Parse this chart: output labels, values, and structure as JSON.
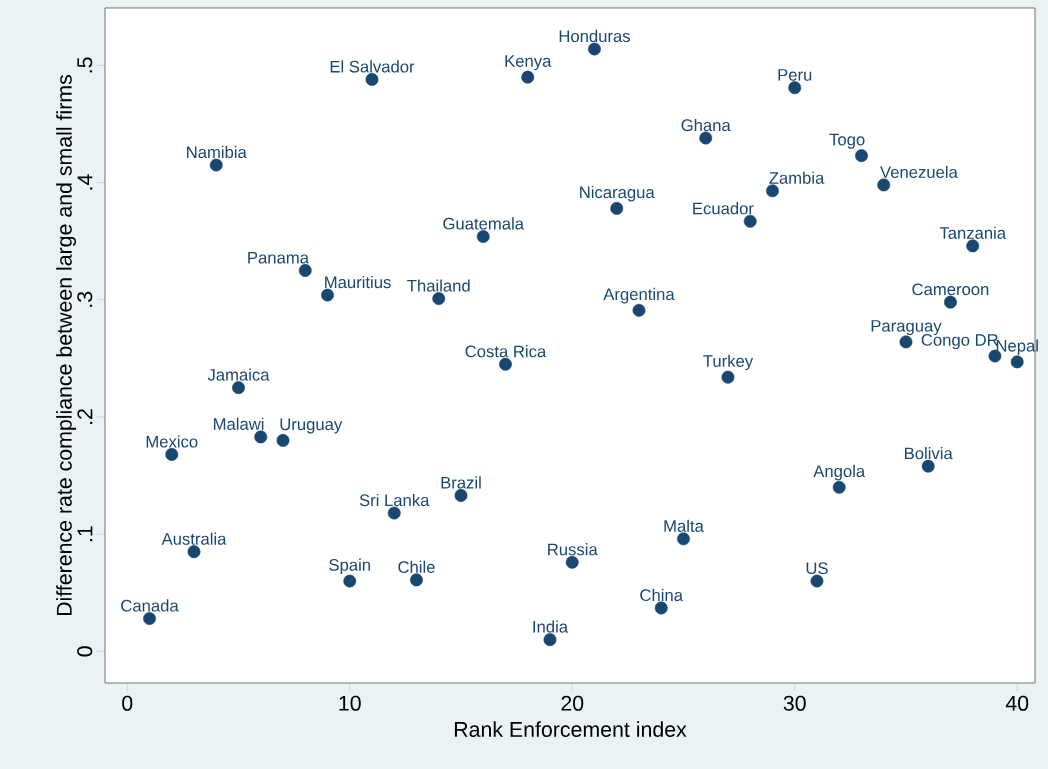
{
  "chart_data": {
    "type": "scatter",
    "xlabel": "Rank Enforcement index",
    "ylabel": "Difference rate compliance between large and small firms",
    "x": [
      1,
      2,
      3,
      4,
      5,
      6,
      7,
      8,
      9,
      10,
      11,
      12,
      13,
      14,
      15,
      16,
      17,
      18,
      19,
      20,
      21,
      22,
      23,
      24,
      25,
      26,
      27,
      28,
      29,
      30,
      31,
      32,
      33,
      34,
      35,
      36,
      37,
      38,
      39,
      40
    ],
    "series": [
      {
        "color": "#1a476f",
        "values": [
          0.028,
          0.168,
          0.085,
          0.415,
          0.225,
          0.183,
          0.18,
          0.325,
          0.304,
          0.06,
          0.488,
          0.118,
          0.061,
          0.301,
          0.133,
          0.354,
          0.245,
          0.49,
          0.01,
          0.076,
          0.514,
          0.378,
          0.291,
          0.037,
          0.096,
          0.438,
          0.234,
          0.367,
          0.393,
          0.481,
          0.06,
          0.14,
          0.423,
          0.398,
          0.264,
          0.158,
          0.298,
          0.346,
          0.252,
          0.247
        ]
      }
    ],
    "marker": "circle",
    "grid": false,
    "legend": false,
    "xlim": [
      -1,
      40.8
    ],
    "ylim": [
      -0.027,
      0.549
    ],
    "xticks": [
      0,
      10,
      20,
      30,
      40
    ],
    "yticks": [
      0,
      {
        "value": 0.1,
        "label": ".1"
      },
      {
        "value": 0.2,
        "label": ".2"
      },
      {
        "value": 0.3,
        "label": ".3"
      },
      {
        "value": 0.4,
        "label": ".4"
      },
      {
        "value": 0.5,
        "label": ".5"
      }
    ],
    "annotations": [
      {
        "text": "Canada",
        "x": 1,
        "y": 0.028
      },
      {
        "text": "Mexico",
        "x": 2,
        "y": 0.168
      },
      {
        "text": "Australia",
        "x": 3,
        "y": 0.085
      },
      {
        "text": "Namibia",
        "x": 4,
        "y": 0.415
      },
      {
        "text": "Jamaica",
        "x": 5,
        "y": 0.225
      },
      {
        "text": "Malawi",
        "x": 6,
        "y": 0.183
      },
      {
        "text": "Uruguay",
        "x": 7,
        "y": 0.18
      },
      {
        "text": "Panama",
        "x": 8,
        "y": 0.325
      },
      {
        "text": "Mauritius",
        "x": 9,
        "y": 0.304
      },
      {
        "text": "Spain",
        "x": 10,
        "y": 0.06
      },
      {
        "text": "El Salvador",
        "x": 11,
        "y": 0.488
      },
      {
        "text": "Sri Lanka",
        "x": 12,
        "y": 0.118
      },
      {
        "text": "Chile",
        "x": 13,
        "y": 0.061
      },
      {
        "text": "Thailand",
        "x": 14,
        "y": 0.301
      },
      {
        "text": "Brazil",
        "x": 15,
        "y": 0.133
      },
      {
        "text": "Guatemala",
        "x": 16,
        "y": 0.354
      },
      {
        "text": "Costa Rica",
        "x": 17,
        "y": 0.245
      },
      {
        "text": "Kenya",
        "x": 18,
        "y": 0.49
      },
      {
        "text": "India",
        "x": 19,
        "y": 0.01
      },
      {
        "text": "Russia",
        "x": 20,
        "y": 0.076
      },
      {
        "text": "Honduras",
        "x": 21,
        "y": 0.514
      },
      {
        "text": "Nicaragua",
        "x": 22,
        "y": 0.378
      },
      {
        "text": "Argentina",
        "x": 23,
        "y": 0.291
      },
      {
        "text": "China",
        "x": 24,
        "y": 0.037
      },
      {
        "text": "Malta",
        "x": 25,
        "y": 0.096
      },
      {
        "text": "Ghana",
        "x": 26,
        "y": 0.438
      },
      {
        "text": "Turkey",
        "x": 27,
        "y": 0.234
      },
      {
        "text": "Ecuador",
        "x": 28,
        "y": 0.367
      },
      {
        "text": "Zambia",
        "x": 29,
        "y": 0.393
      },
      {
        "text": "Peru",
        "x": 30,
        "y": 0.481
      },
      {
        "text": "US",
        "x": 31,
        "y": 0.06
      },
      {
        "text": "Angola",
        "x": 32,
        "y": 0.14
      },
      {
        "text": "Togo",
        "x": 33,
        "y": 0.423
      },
      {
        "text": "Venezuela",
        "x": 34,
        "y": 0.398
      },
      {
        "text": "Paraguay",
        "x": 35,
        "y": 0.264
      },
      {
        "text": "Bolivia",
        "x": 36,
        "y": 0.158
      },
      {
        "text": "Cameroon",
        "x": 37,
        "y": 0.298
      },
      {
        "text": "Tanzania",
        "x": 38,
        "y": 0.346
      },
      {
        "text": "Congo DR",
        "x": 39,
        "y": 0.252
      },
      {
        "text": "Nepal",
        "x": 40,
        "y": 0.247
      }
    ]
  }
}
